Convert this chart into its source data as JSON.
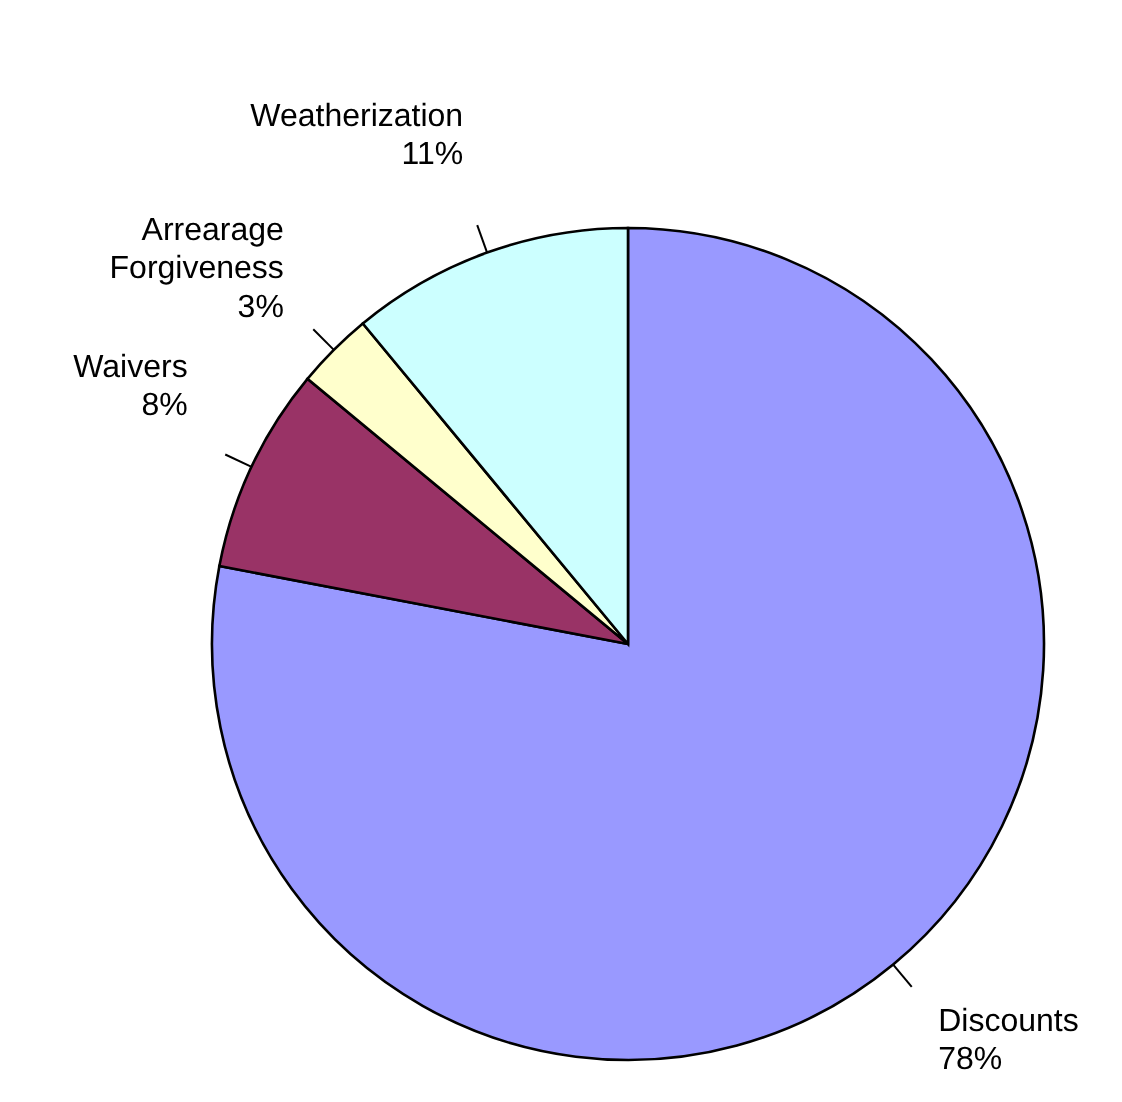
{
  "chart_data": {
    "type": "pie",
    "categories": [
      "Discounts",
      "Waivers",
      "Arrearage Forgiveness",
      "Weatherization"
    ],
    "values": [
      78,
      8,
      3,
      11
    ],
    "colors": [
      "#9999ff",
      "#993366",
      "#ffffcc",
      "#ccffff"
    ],
    "value_labels": [
      "78%",
      "8%",
      "3%",
      "11%"
    ]
  }
}
